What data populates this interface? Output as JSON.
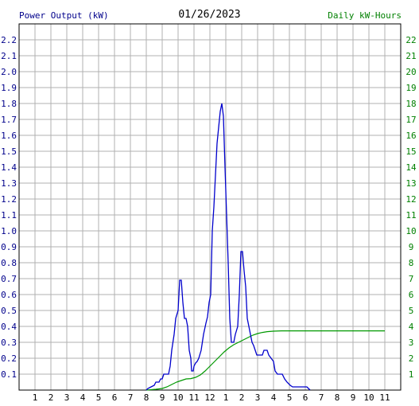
{
  "chart_data": {
    "type": "line",
    "title": "01/26/2023",
    "ylabel_left": "Power Output (kW)",
    "ylabel_right": "Daily kW-Hours",
    "x_ticks": [
      "1",
      "2",
      "3",
      "4",
      "5",
      "6",
      "7",
      "8",
      "9",
      "10",
      "11",
      "12",
      "1",
      "2",
      "3",
      "4",
      "5",
      "6",
      "7",
      "8",
      "9",
      "10",
      "11"
    ],
    "ylim_left": [
      0,
      2.3
    ],
    "ylim_right": [
      0,
      23
    ],
    "yticks_left": [
      "0.1",
      "0.2",
      "0.3",
      "0.4",
      "0.5",
      "0.6",
      "0.7",
      "0.8",
      "0.9",
      "1.0",
      "1.1",
      "1.2",
      "1.3",
      "1.4",
      "1.5",
      "1.6",
      "1.7",
      "1.8",
      "1.9",
      "2.0",
      "2.1",
      "2.2"
    ],
    "yticks_right": [
      "1",
      "2",
      "3",
      "4",
      "5",
      "6",
      "7",
      "8",
      "9",
      "10",
      "11",
      "12",
      "13",
      "14",
      "15",
      "16",
      "17",
      "18",
      "19",
      "20",
      "21",
      "22"
    ],
    "grid": true,
    "colors": {
      "power": "#0000cc",
      "energy": "#009900",
      "grid": "#b0b0b0",
      "left_axis": "#00008b",
      "right_axis": "#008000"
    },
    "series": [
      {
        "axis": "left",
        "points": [
          [
            8.0,
            0.0
          ],
          [
            8.1,
            0.01
          ],
          [
            8.3,
            0.02
          ],
          [
            8.5,
            0.03
          ],
          [
            8.6,
            0.05
          ],
          [
            8.8,
            0.05
          ],
          [
            8.9,
            0.07
          ],
          [
            9.0,
            0.07
          ],
          [
            9.1,
            0.1
          ],
          [
            9.4,
            0.1
          ],
          [
            9.5,
            0.15
          ],
          [
            9.6,
            0.25
          ],
          [
            9.75,
            0.35
          ],
          [
            9.85,
            0.45
          ],
          [
            10.0,
            0.5
          ],
          [
            10.1,
            0.69
          ],
          [
            10.2,
            0.69
          ],
          [
            10.3,
            0.55
          ],
          [
            10.4,
            0.45
          ],
          [
            10.5,
            0.45
          ],
          [
            10.6,
            0.4
          ],
          [
            10.7,
            0.25
          ],
          [
            10.8,
            0.2
          ],
          [
            10.85,
            0.12
          ],
          [
            10.95,
            0.12
          ],
          [
            11.0,
            0.15
          ],
          [
            11.1,
            0.17
          ],
          [
            11.2,
            0.18
          ],
          [
            11.3,
            0.2
          ],
          [
            11.45,
            0.25
          ],
          [
            11.6,
            0.35
          ],
          [
            11.75,
            0.42
          ],
          [
            11.85,
            0.46
          ],
          [
            11.95,
            0.55
          ],
          [
            12.05,
            0.6
          ],
          [
            12.15,
            1.0
          ],
          [
            12.25,
            1.15
          ],
          [
            12.35,
            1.35
          ],
          [
            12.45,
            1.55
          ],
          [
            12.55,
            1.65
          ],
          [
            12.65,
            1.75
          ],
          [
            12.75,
            1.8
          ],
          [
            12.85,
            1.72
          ],
          [
            12.95,
            1.4
          ],
          [
            13.05,
            1.1
          ],
          [
            13.15,
            0.8
          ],
          [
            13.25,
            0.45
          ],
          [
            13.35,
            0.3
          ],
          [
            13.5,
            0.3
          ],
          [
            13.6,
            0.35
          ],
          [
            13.75,
            0.4
          ],
          [
            13.85,
            0.6
          ],
          [
            13.95,
            0.87
          ],
          [
            14.05,
            0.87
          ],
          [
            14.15,
            0.75
          ],
          [
            14.25,
            0.65
          ],
          [
            14.35,
            0.45
          ],
          [
            14.45,
            0.4
          ],
          [
            14.55,
            0.35
          ],
          [
            14.65,
            0.3
          ],
          [
            14.75,
            0.28
          ],
          [
            14.85,
            0.25
          ],
          [
            14.95,
            0.22
          ],
          [
            15.3,
            0.22
          ],
          [
            15.4,
            0.25
          ],
          [
            15.6,
            0.25
          ],
          [
            15.7,
            0.22
          ],
          [
            15.85,
            0.2
          ],
          [
            16.0,
            0.18
          ],
          [
            16.1,
            0.12
          ],
          [
            16.25,
            0.1
          ],
          [
            16.55,
            0.1
          ],
          [
            16.7,
            0.07
          ],
          [
            16.85,
            0.05
          ],
          [
            17.05,
            0.03
          ],
          [
            17.2,
            0.02
          ],
          [
            18.1,
            0.02
          ],
          [
            18.2,
            0.01
          ],
          [
            18.3,
            0.0
          ]
        ]
      },
      {
        "axis": "right",
        "points": [
          [
            8.0,
            0.0
          ],
          [
            8.6,
            0.05
          ],
          [
            9.0,
            0.1
          ],
          [
            9.3,
            0.2
          ],
          [
            9.6,
            0.35
          ],
          [
            9.9,
            0.5
          ],
          [
            10.2,
            0.6
          ],
          [
            10.5,
            0.7
          ],
          [
            10.8,
            0.72
          ],
          [
            11.1,
            0.8
          ],
          [
            11.4,
            0.95
          ],
          [
            11.7,
            1.2
          ],
          [
            12.0,
            1.5
          ],
          [
            12.3,
            1.8
          ],
          [
            12.6,
            2.1
          ],
          [
            12.9,
            2.4
          ],
          [
            13.2,
            2.65
          ],
          [
            13.5,
            2.85
          ],
          [
            13.8,
            3.0
          ],
          [
            14.1,
            3.15
          ],
          [
            14.4,
            3.3
          ],
          [
            14.7,
            3.45
          ],
          [
            15.0,
            3.55
          ],
          [
            15.3,
            3.62
          ],
          [
            15.6,
            3.67
          ],
          [
            16.0,
            3.7
          ],
          [
            16.5,
            3.72
          ],
          [
            17.0,
            3.72
          ],
          [
            23.0,
            3.72
          ]
        ]
      }
    ]
  }
}
